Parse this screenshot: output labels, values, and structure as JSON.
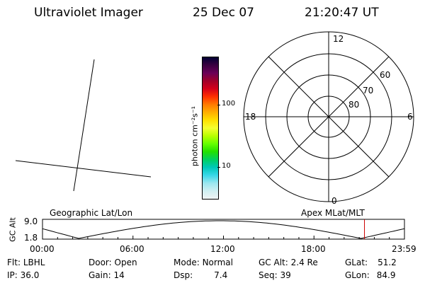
{
  "header": {
    "title": "Ultraviolet Imager",
    "date": "25 Dec 07",
    "time": "21:20:47 UT"
  },
  "colorbar": {
    "unit_label": "photon cm⁻²s⁻¹",
    "ticks": [
      "100",
      "10"
    ],
    "colors": [
      "#000033",
      "#3a0040",
      "#6a0058",
      "#a0002a",
      "#d4001a",
      "#ff3000",
      "#ff7a00",
      "#ffae00",
      "#ffe000",
      "#f5ff30",
      "#b8ff00",
      "#66ff00",
      "#22e000",
      "#00d060",
      "#00c8b8",
      "#38d8e8",
      "#9ae6ef",
      "#cfeff2",
      "#f0f4f4"
    ]
  },
  "polar_plot": {
    "mlt_labels": {
      "top": "12",
      "bottom": "0",
      "left": "18",
      "right": "6"
    },
    "lat_labels": [
      "60",
      "70",
      "80"
    ]
  },
  "altitude_strip": {
    "y_axis_label": "GC Alt",
    "y_ticks": [
      "9.0",
      "1.8"
    ],
    "left_title": "Geographic Lat/Lon",
    "right_title": "Apex MLat/MLT",
    "x_ticks": [
      "00:00",
      "06:00",
      "12:00",
      "18:00",
      "23:59"
    ],
    "current_time_fraction": 0.8895,
    "marker_color": "#cc0000"
  },
  "status": {
    "flt_label": "Flt:",
    "flt_value": "LBHL",
    "ip_label": "IP:",
    "ip_value": "36.0",
    "door_label": "Door:",
    "door_value": "Open",
    "gain_label": "Gain:",
    "gain_value": "14",
    "mode_label": "Mode:",
    "mode_value": "Normal",
    "dsp_label": "Dsp:",
    "dsp_value": "7.4",
    "gcalt_label": "GC Alt:",
    "gcalt_value": "2.4 Re",
    "seq_label": "Seq:",
    "seq_value": "39",
    "glat_label": "GLat:",
    "glat_value": "51.2",
    "glon_label": "GLon:",
    "glon_value": "84.9"
  }
}
